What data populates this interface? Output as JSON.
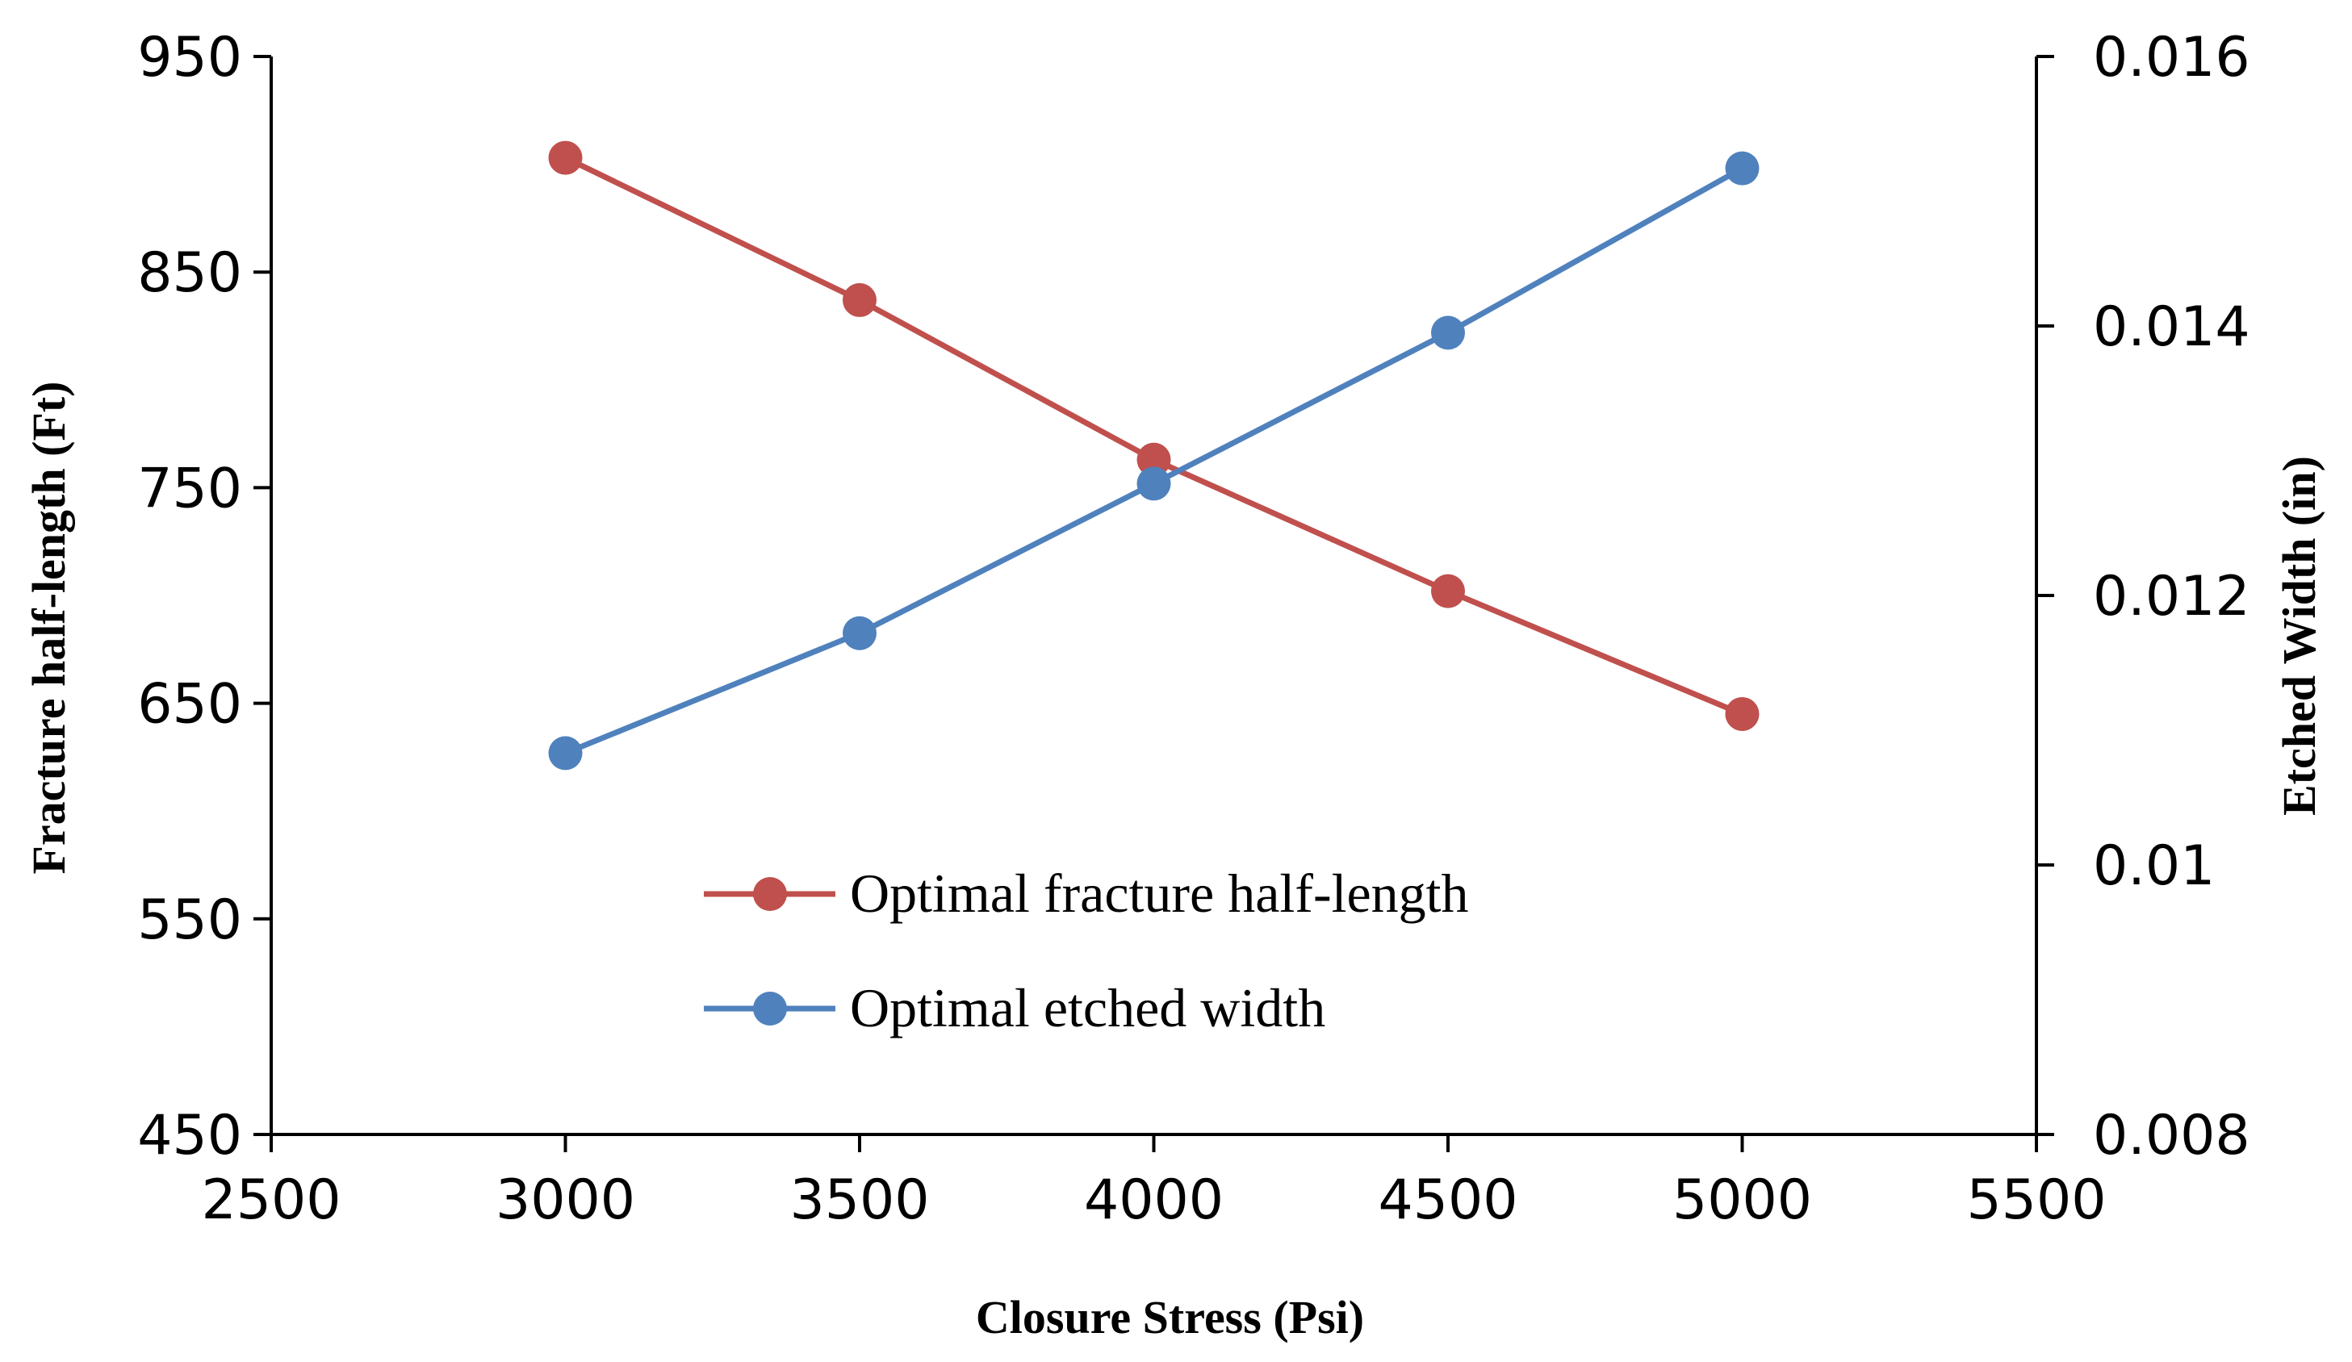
{
  "chart_data": {
    "type": "line",
    "title": "",
    "xlabel": "Closure Stress (Psi)",
    "ylabel": "Fracture half-length (Ft)",
    "y2label": "Etched Width (in)",
    "xlim": [
      2500,
      5500
    ],
    "ylim": [
      450,
      950
    ],
    "y2lim": [
      0.008,
      0.016
    ],
    "x_ticks": [
      2500,
      3000,
      3500,
      4000,
      4500,
      5000,
      5500
    ],
    "x_tick_labels": [
      "2500",
      "3000",
      "3500",
      "4000",
      "4500",
      "5000",
      "5500"
    ],
    "y_ticks": [
      450,
      550,
      650,
      750,
      850,
      950
    ],
    "y_tick_labels": [
      "450",
      "550",
      "650",
      "750",
      "850",
      "950"
    ],
    "y2_ticks": [
      0.008,
      0.01,
      0.012,
      0.014,
      0.016
    ],
    "y2_tick_labels": [
      "0.008",
      "0.01",
      "0.012",
      "0.014",
      "0.016"
    ],
    "grid": false,
    "legend_position": "bottom-center",
    "series": [
      {
        "name": "Optimal fracture half-length",
        "axis": "left",
        "color": "#C0504D",
        "x": [
          3000,
          3500,
          4000,
          4500,
          5000
        ],
        "values": [
          903,
          837,
          763,
          702,
          645
        ]
      },
      {
        "name": "Optimal etched width",
        "axis": "right",
        "color": "#4F81BD",
        "x": [
          3000,
          3500,
          4000,
          4500,
          5000
        ],
        "values": [
          0.01083,
          0.01172,
          0.01283,
          0.01395,
          0.01517
        ]
      }
    ]
  }
}
